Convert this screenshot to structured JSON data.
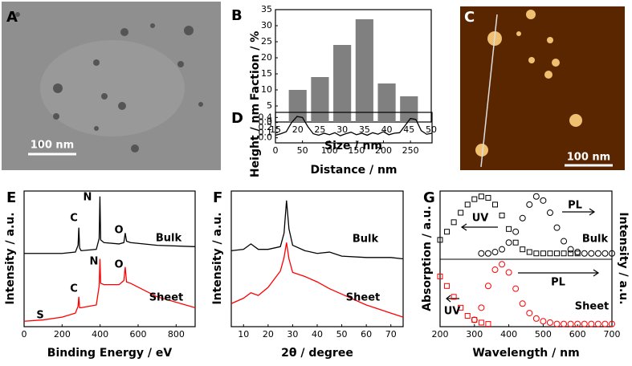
{
  "image_panels": [
    {
      "panel_label": "A",
      "scale_bar": "100 nm"
    },
    {
      "panel_label": "C",
      "scale_bar": "100 nm"
    }
  ],
  "chart_data": [
    {
      "type": "bar",
      "panel_label": "B",
      "x": [
        20,
        25,
        30,
        35,
        40,
        45
      ],
      "values": [
        10,
        14,
        24,
        32,
        12,
        8
      ],
      "color": "#808080",
      "xlim": [
        15,
        50
      ],
      "xticks": [
        15,
        20,
        25,
        30,
        35,
        40,
        45,
        50
      ],
      "ylim": [
        0,
        35
      ],
      "yticks": [
        0,
        5,
        10,
        15,
        20,
        25,
        30,
        35
      ],
      "xlabel": "Size / nm",
      "ylabel": "Faction / %"
    },
    {
      "type": "line",
      "panel_label": "D",
      "x": [
        0,
        10,
        20,
        30,
        40,
        50,
        60,
        70,
        80,
        90,
        100,
        110,
        120,
        130,
        140,
        150,
        160,
        170,
        180,
        190,
        200,
        210,
        220,
        230,
        240,
        250,
        260,
        270,
        280,
        290
      ],
      "values": [
        0.05,
        0.08,
        0.12,
        0.3,
        0.42,
        0.4,
        0.22,
        0.08,
        0.05,
        0.09,
        0.06,
        0.1,
        0.04,
        0.08,
        0.11,
        0.06,
        0.09,
        0.05,
        0.1,
        0.07,
        0.12,
        0.06,
        0.09,
        0.1,
        0.24,
        0.38,
        0.36,
        0.14,
        0.07,
        0.09
      ],
      "color": "#000000",
      "xlim": [
        0,
        290
      ],
      "xticks": [
        0,
        50,
        100,
        150,
        200,
        250
      ],
      "ylim": [
        -0.1,
        0.5
      ],
      "yticks": [
        {
          "value": 0,
          "label": "0.0"
        },
        0.1,
        0.2,
        0.3,
        0.4
      ],
      "xlabel": "Distance / nm",
      "ylabel": "Height / nm"
    },
    {
      "type": "line",
      "panel_label": "E",
      "x": [
        0,
        100,
        200,
        270,
        284,
        288,
        292,
        300,
        380,
        395,
        399,
        403,
        420,
        500,
        525,
        532,
        539,
        560,
        700,
        900
      ],
      "series": [
        {
          "name": "Bulk",
          "color": "#000000",
          "values": [
            54,
            54,
            54,
            55,
            60,
            73,
            58,
            56,
            57,
            65,
            96,
            64,
            62,
            61,
            62,
            69,
            63,
            62,
            60,
            59
          ]
        },
        {
          "name": "Sheet",
          "color": "#ff0000",
          "values": [
            4,
            5,
            7,
            10,
            15,
            22,
            14,
            14,
            16,
            30,
            50,
            32,
            31,
            31,
            34,
            44,
            33,
            32,
            22,
            14
          ]
        }
      ],
      "annotations": [
        "C",
        "N",
        "O",
        "N",
        "C",
        "O",
        "S"
      ],
      "xlim": [
        0,
        900
      ],
      "xticks": [
        0,
        200,
        400,
        600,
        800
      ],
      "ylim": [
        0,
        100
      ],
      "xlabel": "Binding Energy / eV",
      "ylabel": "Intensity / a.u."
    },
    {
      "type": "line",
      "panel_label": "F",
      "x": [
        5,
        10,
        13,
        16,
        20,
        25,
        26.5,
        27.5,
        28.5,
        30,
        35,
        40,
        45,
        50,
        60,
        70,
        75
      ],
      "series": [
        {
          "name": "Bulk",
          "color": "#000000",
          "values": [
            56,
            57,
            61,
            57,
            57,
            59,
            69,
            93,
            72,
            60,
            56,
            54,
            55,
            52,
            51,
            51,
            50
          ]
        },
        {
          "name": "Sheet",
          "color": "#ff0000",
          "values": [
            17,
            21,
            25,
            23,
            29,
            41,
            51,
            62,
            50,
            40,
            37,
            33,
            28,
            24,
            16,
            10,
            7
          ]
        }
      ],
      "xlim": [
        5,
        75
      ],
      "xticks": [
        10,
        20,
        30,
        40,
        50,
        60,
        70
      ],
      "ylim": [
        0,
        100
      ],
      "xlabel": "2θ  / degree",
      "ylabel": "Intensity / a.u."
    },
    {
      "type": "scatter",
      "panel_label": "G",
      "x": [
        200,
        220,
        240,
        260,
        280,
        300,
        320,
        340,
        360,
        380,
        400,
        420,
        440,
        460,
        480,
        500,
        520,
        540,
        560,
        580,
        600,
        620,
        640,
        660,
        680,
        700
      ],
      "series": [
        {
          "name": "UV",
          "color": "#000000",
          "marker": "square",
          "values": [
            64,
            70,
            77,
            84,
            90,
            94,
            96,
            95,
            90,
            82,
            72,
            62,
            57,
            55,
            54,
            54,
            54,
            54,
            54,
            54,
            54,
            null,
            null,
            null,
            null,
            null
          ]
        },
        {
          "name": "PL",
          "color": "#000000",
          "marker": "circle",
          "values": [
            null,
            null,
            null,
            null,
            null,
            null,
            54,
            54,
            55,
            57,
            62,
            70,
            80,
            90,
            96,
            93,
            84,
            73,
            63,
            57,
            55,
            54,
            54,
            54,
            54,
            54
          ]
        },
        {
          "name": "UV",
          "color": "#ff0000",
          "marker": "square",
          "values": [
            37,
            30,
            22,
            14,
            8,
            5,
            3,
            2,
            null,
            null,
            null,
            null,
            null,
            null,
            null,
            null,
            null,
            null,
            null,
            null,
            null,
            null,
            null,
            null,
            null,
            null
          ]
        },
        {
          "name": "PL",
          "color": "#ff0000",
          "marker": "circle",
          "values": [
            null,
            null,
            null,
            null,
            null,
            5,
            14,
            30,
            42,
            46,
            40,
            28,
            17,
            10,
            6,
            4,
            3,
            2,
            2,
            2,
            2,
            2,
            2,
            2,
            2,
            2
          ]
        }
      ],
      "annotations": [
        "Bulk",
        "Sheet"
      ],
      "xlim": [
        200,
        700
      ],
      "xticks": [
        200,
        300,
        400,
        500,
        600,
        700
      ],
      "ylim": [
        0,
        100
      ],
      "xlabel": "Wavelength / nm",
      "ylabel": "Absorption / a.u.",
      "y2label": "Intensity / a.u."
    }
  ]
}
